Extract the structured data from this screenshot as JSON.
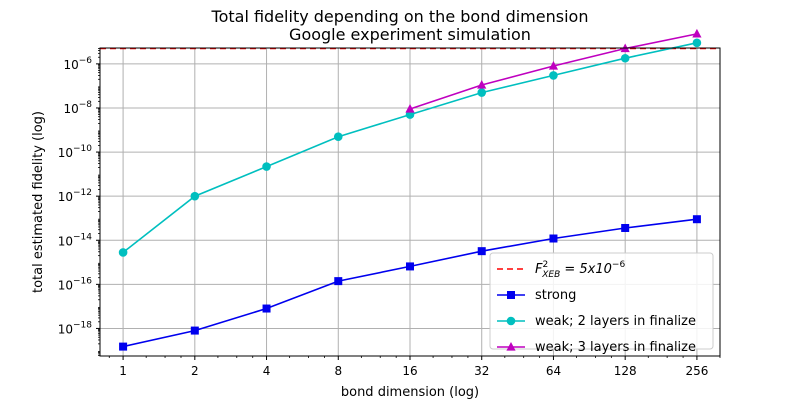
{
  "chart_data": {
    "type": "line",
    "title": "Total fidelity depending on the bond dimension",
    "subtitle": "Google experiment simulation",
    "xlabel": "bond dimension (log)",
    "ylabel": "total estimated fidelity (log)",
    "x_scale": "log2",
    "y_scale": "log10",
    "xlim": [
      0.8,
      320
    ],
    "ylim_exp": [
      -19.25,
      -5.28
    ],
    "grid": true,
    "x_ticks": [
      {
        "value": 1,
        "label": "1"
      },
      {
        "value": 2,
        "label": "2"
      },
      {
        "value": 4,
        "label": "4"
      },
      {
        "value": 8,
        "label": "8"
      },
      {
        "value": 16,
        "label": "16"
      },
      {
        "value": 32,
        "label": "32"
      },
      {
        "value": 64,
        "label": "64"
      },
      {
        "value": 128,
        "label": "128"
      },
      {
        "value": 256,
        "label": "256"
      }
    ],
    "y_ticks": [
      {
        "exp": -18,
        "base": "10",
        "sup": "−18"
      },
      {
        "exp": -16,
        "base": "10",
        "sup": "−16"
      },
      {
        "exp": -14,
        "base": "10",
        "sup": "−14"
      },
      {
        "exp": -12,
        "base": "10",
        "sup": "−12"
      },
      {
        "exp": -10,
        "base": "10",
        "sup": "−10"
      },
      {
        "exp": -8,
        "base": "10",
        "sup": "−8"
      },
      {
        "exp": -6,
        "base": "10",
        "sup": "−6"
      }
    ],
    "reference_line": {
      "y": 5e-06,
      "name_main": "F",
      "name_sup": "2",
      "name_sub": "XEB",
      "name_rest": " = 5x10",
      "name_rest_sup": "−6",
      "color": "#ff0000"
    },
    "series": [
      {
        "name": "strong",
        "color": "#0000ee",
        "marker": "square",
        "x": [
          1,
          2,
          4,
          8,
          16,
          32,
          64,
          128,
          256
        ],
        "y": [
          1.5e-19,
          8e-19,
          8e-18,
          1.4e-16,
          6.5e-16,
          3.2e-15,
          1.2e-14,
          3.6e-14,
          9e-14
        ]
      },
      {
        "name": "weak; 2 layers in finalize",
        "color": "#00bfbf",
        "marker": "circle",
        "x": [
          1,
          2,
          4,
          8,
          16,
          32,
          64,
          128,
          256
        ],
        "y": [
          2.8e-15,
          1e-12,
          2.2e-11,
          5e-10,
          5e-09,
          5e-08,
          3e-07,
          1.8e-06,
          9e-06
        ]
      },
      {
        "name": "weak; 3 layers in finalize",
        "color": "#bf00bf",
        "marker": "triangle",
        "x": [
          16,
          32,
          64,
          128,
          256
        ],
        "y": [
          9e-09,
          1.1e-07,
          8e-07,
          5e-06,
          2.3e-05
        ]
      }
    ],
    "legend_position": "lower-right"
  }
}
